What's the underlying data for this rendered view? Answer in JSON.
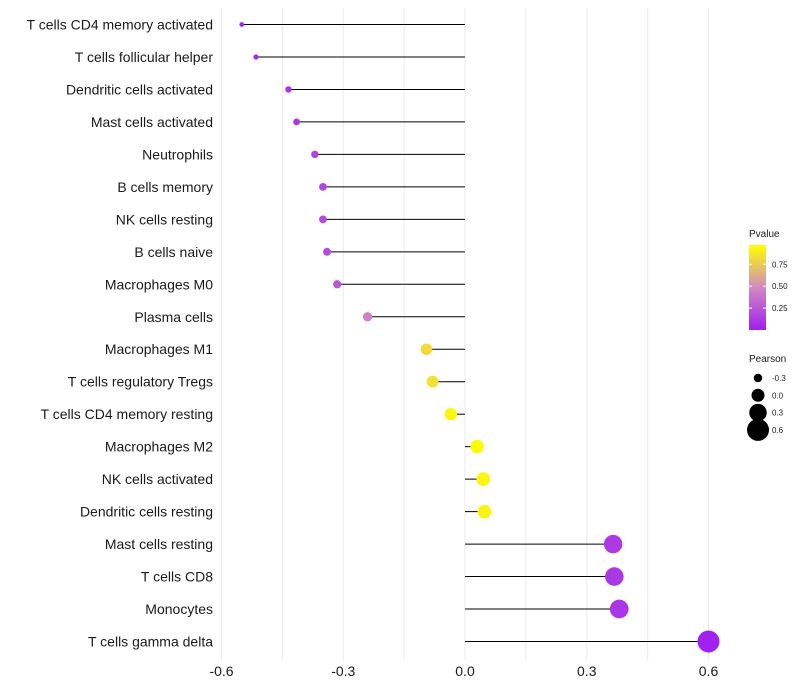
{
  "chart_data": {
    "type": "lollipop",
    "title": "",
    "xlabel": "",
    "ylabel": "",
    "xlim": [
      -0.67,
      0.67
    ],
    "x_ticks": [
      -0.6,
      -0.3,
      0.0,
      0.3,
      0.6
    ],
    "x_tick_labels": [
      "-0.6",
      "-0.3",
      "0.0",
      "0.3",
      "0.6"
    ],
    "grid": true,
    "categories": [
      "T cells CD4 memory activated",
      "T cells follicular helper",
      "Dendritic cells activated",
      "Mast cells activated",
      "Neutrophils",
      "B cells memory",
      "NK cells resting",
      "B cells naive",
      "Macrophages M0",
      "Plasma cells",
      "Macrophages M1",
      "T cells regulatory  Tregs",
      "T cells CD4 memory resting",
      "Macrophages M2",
      "NK cells activated",
      "Dendritic cells resting",
      "Mast cells resting",
      "T cells CD8",
      "Monocytes",
      "T cells gamma delta"
    ],
    "pearson": [
      -0.55,
      -0.515,
      -0.435,
      -0.415,
      -0.37,
      -0.35,
      -0.35,
      -0.34,
      -0.315,
      -0.24,
      -0.095,
      -0.08,
      -0.035,
      0.03,
      0.045,
      0.048,
      0.365,
      0.368,
      0.38,
      0.6
    ],
    "pvalue": [
      0.02,
      0.05,
      0.1,
      0.12,
      0.17,
      0.19,
      0.19,
      0.2,
      0.25,
      0.45,
      0.82,
      0.84,
      0.93,
      0.95,
      0.93,
      0.92,
      0.12,
      0.11,
      0.1,
      0.003
    ],
    "color_legend": {
      "title": "Pvalue",
      "ticks": [
        0.25,
        0.5,
        0.75
      ],
      "tick_labels": [
        "0.25",
        "0.50",
        "0.75"
      ],
      "range": [
        0.0,
        0.97
      ],
      "low_color": "#a020f0",
      "mid_color": "#d18ac0",
      "high_color": "#ffff00"
    },
    "size_legend": {
      "title": "Pearson",
      "values": [
        -0.3,
        0.0,
        0.3,
        0.6
      ],
      "labels": [
        "-0.3",
        "0.0",
        "0.3",
        "0.6"
      ]
    },
    "colors": {
      "stem": "#000000",
      "grid": "#ebebeb"
    }
  }
}
